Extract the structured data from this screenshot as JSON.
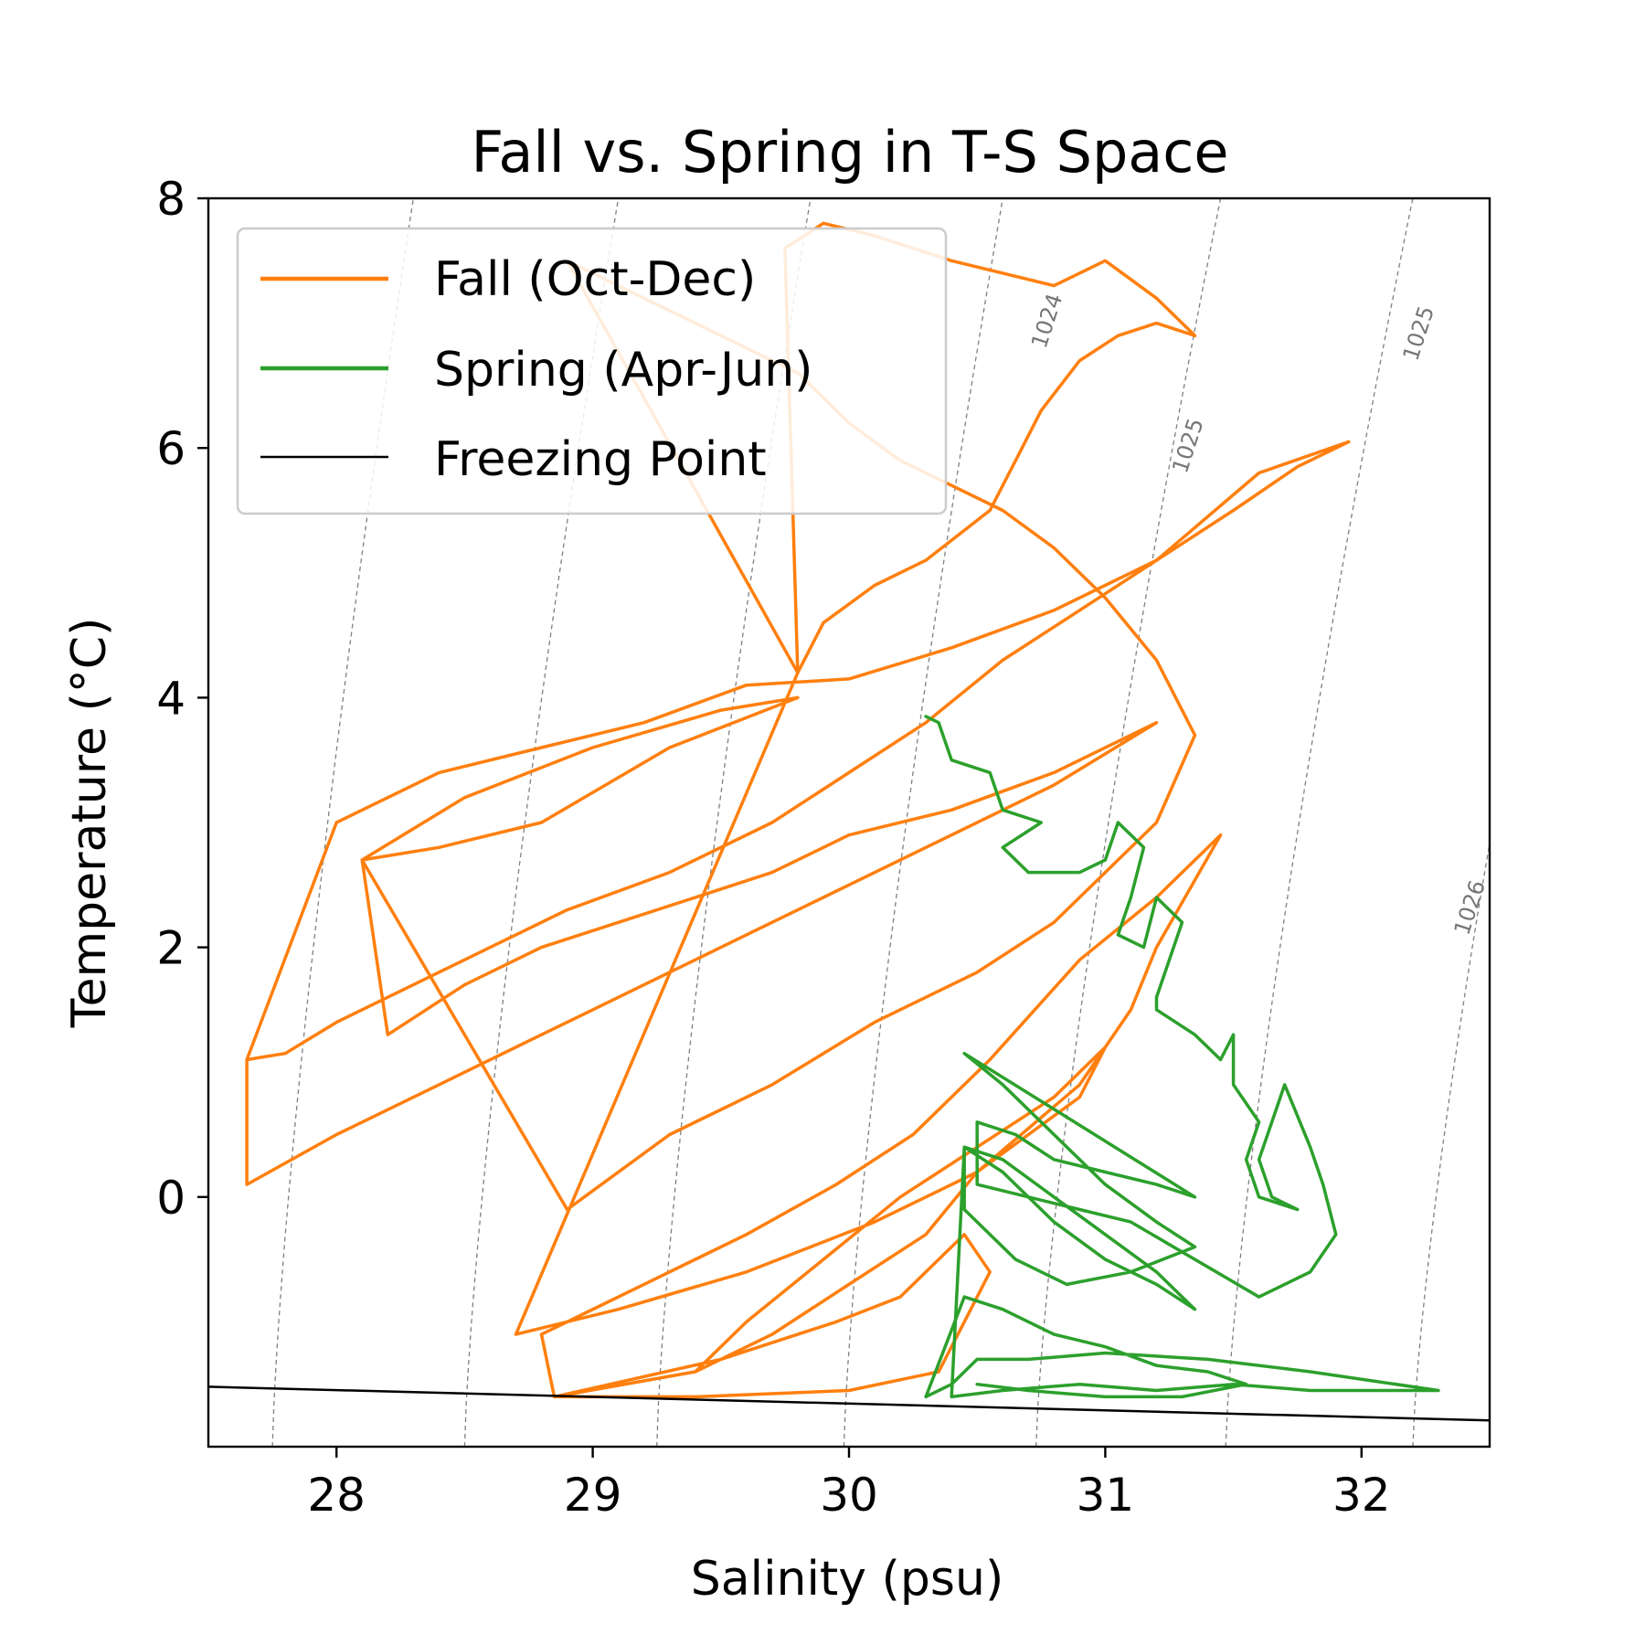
{
  "chart_data": {
    "type": "line",
    "title": "Fall vs. Spring in T-S Space",
    "xlabel": "Salinity (psu)",
    "ylabel": "Temperature (°C)",
    "xlim": [
      27.5,
      32.5
    ],
    "ylim": [
      -2.0,
      8.0
    ],
    "xticks": [
      "28",
      "29",
      "30",
      "31",
      "32"
    ],
    "yticks": [
      "0",
      "2",
      "4",
      "6",
      "8"
    ],
    "grid": false,
    "legend_position": "top-left",
    "colors": {
      "fall": "#ff7f0e",
      "spring": "#2ca02c",
      "freezing": "#000000",
      "isopycnal": "#808080"
    },
    "isopycnal_labels": [
      {
        "text": "1024",
        "s": 30.8,
        "t": 7.0
      },
      {
        "text": "1025",
        "s": 31.35,
        "t": 6.0
      },
      {
        "text": "1025",
        "s": 32.25,
        "t": 6.9
      },
      {
        "text": "1026",
        "s": 32.45,
        "t": 2.3
      }
    ],
    "isopycnals": [
      {
        "s_bottom": 27.75,
        "s_top": 28.3
      },
      {
        "s_bottom": 28.5,
        "s_top": 29.1
      },
      {
        "s_bottom": 29.25,
        "s_top": 29.85
      },
      {
        "s_bottom": 29.98,
        "s_top": 30.6
      },
      {
        "s_bottom": 30.73,
        "s_top": 31.45
      },
      {
        "s_bottom": 31.47,
        "s_top": 32.2
      },
      {
        "s_bottom": 32.2,
        "s_top": 33.0
      }
    ],
    "series": [
      {
        "name": "Fall (Oct-Dec)",
        "color": "#ff7f0e",
        "x": [
          27.65,
          27.8,
          28.0,
          28.3,
          28.6,
          28.9,
          29.3,
          29.7,
          30.0,
          30.3,
          30.6,
          30.9,
          31.2,
          31.5,
          31.75,
          31.95,
          31.6,
          31.2,
          30.8,
          30.4,
          30.0,
          29.6,
          29.2,
          28.8,
          28.4,
          28.0,
          27.65,
          27.65,
          28.0,
          28.4,
          28.8,
          29.2,
          29.6,
          30.0,
          30.4,
          30.8,
          31.2,
          30.8,
          30.4,
          30.0,
          29.7,
          29.4,
          29.1,
          28.8,
          28.5,
          28.2,
          28.1,
          28.5,
          29.0,
          29.5,
          29.8,
          29.3,
          28.8,
          28.4,
          28.1,
          28.9,
          29.3,
          29.7,
          30.1,
          30.5,
          30.8,
          31.0,
          31.2,
          31.35,
          31.2,
          31.0,
          30.8,
          30.6,
          30.4,
          30.2,
          30.0,
          29.8,
          29.5,
          29.2,
          28.9,
          29.8,
          29.9,
          30.1,
          30.3,
          30.55,
          30.65,
          30.75,
          30.9,
          31.05,
          31.2,
          31.35,
          31.2,
          31.0,
          30.8,
          30.4,
          30.1,
          29.9,
          29.75,
          29.8,
          28.7,
          29.1,
          29.6,
          30.1,
          30.5,
          30.9,
          31.1,
          31.2,
          31.45,
          31.2,
          30.9,
          30.55,
          30.25,
          29.95,
          29.6,
          29.2,
          28.8,
          28.85,
          29.4,
          30.0,
          30.35,
          30.45,
          30.55,
          30.45,
          30.35,
          30.2,
          29.95,
          29.5,
          28.85,
          29.4,
          29.7,
          30.0,
          30.3,
          30.5,
          30.7,
          30.9,
          31.0,
          30.8,
          30.5,
          30.2,
          29.9,
          29.6,
          29.4
        ],
        "y": [
          1.1,
          1.15,
          1.4,
          1.7,
          2.0,
          2.3,
          2.6,
          3.0,
          3.4,
          3.8,
          4.3,
          4.7,
          5.1,
          5.5,
          5.85,
          6.05,
          5.8,
          5.1,
          4.7,
          4.4,
          4.15,
          4.1,
          3.8,
          3.6,
          3.4,
          3.0,
          1.1,
          0.1,
          0.5,
          0.9,
          1.3,
          1.7,
          2.1,
          2.5,
          2.9,
          3.3,
          3.8,
          3.4,
          3.1,
          2.9,
          2.6,
          2.4,
          2.2,
          2.0,
          1.7,
          1.3,
          2.7,
          3.2,
          3.6,
          3.9,
          4.0,
          3.6,
          3.0,
          2.8,
          2.7,
          -0.1,
          0.5,
          0.9,
          1.4,
          1.8,
          2.2,
          2.6,
          3.0,
          3.7,
          4.3,
          4.8,
          5.2,
          5.5,
          5.7,
          5.9,
          6.2,
          6.6,
          6.9,
          7.2,
          7.5,
          4.2,
          4.6,
          4.9,
          5.1,
          5.5,
          5.9,
          6.3,
          6.7,
          6.9,
          7.0,
          6.9,
          7.2,
          7.5,
          7.3,
          7.5,
          7.7,
          7.8,
          7.6,
          4.2,
          -1.1,
          -0.9,
          -0.6,
          -0.2,
          0.2,
          0.9,
          1.5,
          2.0,
          2.9,
          2.4,
          1.9,
          1.1,
          0.5,
          0.1,
          -0.3,
          -0.7,
          -1.1,
          -1.6,
          -1.6,
          -1.55,
          -1.4,
          -1.0,
          -0.6,
          -0.3,
          -0.5,
          -0.8,
          -1.0,
          -1.3,
          -1.6,
          -1.4,
          -1.1,
          -0.7,
          -0.3,
          0.2,
          0.5,
          0.8,
          1.2,
          0.8,
          0.4,
          0.0,
          -0.5,
          -1.0,
          -1.4
        ]
      },
      {
        "name": "Spring (Apr-Jun)",
        "color": "#2ca02c",
        "x": [
          30.3,
          30.35,
          30.4,
          30.55,
          30.6,
          30.75,
          30.6,
          30.7,
          30.9,
          31.0,
          31.05,
          31.15,
          31.1,
          31.05,
          31.15,
          31.2,
          31.3,
          31.25,
          31.2,
          31.2,
          31.35,
          31.45,
          31.5,
          31.5,
          31.6,
          31.55,
          31.6,
          31.75,
          31.65,
          31.6,
          31.65,
          31.7,
          31.8,
          31.85,
          31.9,
          31.8,
          31.6,
          31.35,
          31.1,
          30.9,
          30.7,
          30.5,
          30.5,
          30.65,
          30.8,
          31.0,
          31.2,
          31.35,
          30.45,
          30.6,
          30.8,
          31.0,
          31.2,
          31.35,
          31.1,
          30.85,
          30.65,
          30.45,
          30.45,
          30.6,
          30.8,
          31.0,
          31.2,
          31.35,
          31.2,
          31.0,
          30.8,
          30.6,
          30.45,
          30.4,
          30.6,
          30.9,
          31.2,
          31.5,
          31.8,
          32.1,
          32.3,
          31.8,
          31.4,
          31.0,
          30.7,
          30.5,
          30.4,
          30.3,
          30.45,
          30.6,
          30.8,
          31.0,
          31.2,
          31.4,
          31.55,
          31.3,
          31.0,
          30.7,
          30.5
        ],
        "y": [
          3.85,
          3.8,
          3.5,
          3.4,
          3.1,
          3.0,
          2.8,
          2.6,
          2.6,
          2.7,
          3.0,
          2.8,
          2.4,
          2.1,
          2.0,
          2.4,
          2.2,
          1.9,
          1.6,
          1.5,
          1.3,
          1.1,
          1.3,
          0.9,
          0.6,
          0.3,
          0.0,
          -0.1,
          0.0,
          0.3,
          0.6,
          0.9,
          0.4,
          0.1,
          -0.3,
          -0.6,
          -0.8,
          -0.5,
          -0.2,
          -0.1,
          0.0,
          0.1,
          0.6,
          0.5,
          0.3,
          0.2,
          0.1,
          0.0,
          1.15,
          0.9,
          0.5,
          0.1,
          -0.2,
          -0.4,
          -0.6,
          -0.7,
          -0.5,
          -0.1,
          0.4,
          0.2,
          -0.2,
          -0.5,
          -0.7,
          -0.9,
          -0.6,
          -0.3,
          0.0,
          0.3,
          0.4,
          -1.6,
          -1.55,
          -1.5,
          -1.55,
          -1.5,
          -1.55,
          -1.55,
          -1.55,
          -1.4,
          -1.3,
          -1.25,
          -1.3,
          -1.3,
          -1.5,
          -1.6,
          -0.8,
          -0.9,
          -1.1,
          -1.2,
          -1.35,
          -1.4,
          -1.5,
          -1.6,
          -1.6,
          -1.55,
          -1.5
        ]
      },
      {
        "name": "Freezing Point",
        "color": "#000000",
        "x": [
          27.5,
          32.5
        ],
        "y": [
          -1.52,
          -1.79
        ]
      }
    ]
  }
}
